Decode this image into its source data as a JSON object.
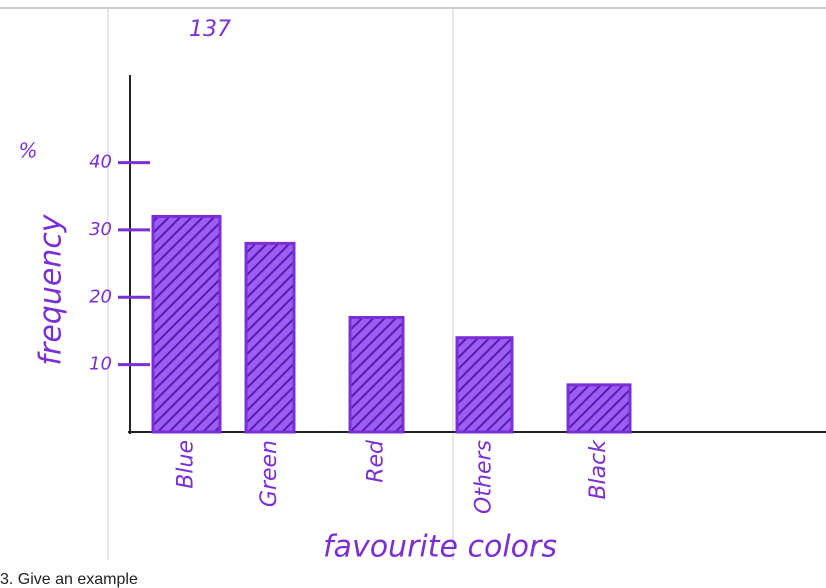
{
  "chart_data": {
    "type": "bar",
    "annotation": "137",
    "y_label": "frequency",
    "y_unit": "%",
    "x_label": "favourite colors",
    "categories": [
      "Blue",
      "Green",
      "Red",
      "Others",
      "Black"
    ],
    "values": [
      32,
      28,
      17,
      14,
      7
    ],
    "color": "#7a2fd6",
    "ylim": [
      0,
      53
    ],
    "yticks": [
      10,
      20,
      30,
      40
    ],
    "grid": false
  },
  "worksheet": {
    "footer": "3. Give an example"
  }
}
